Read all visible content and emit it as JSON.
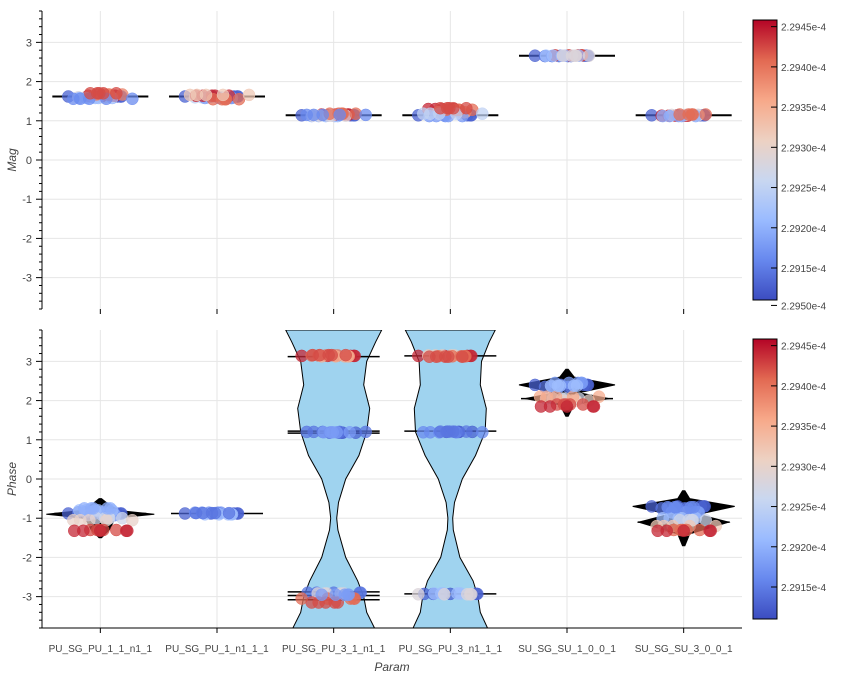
{
  "chart_data": [
    {
      "type": "scatter",
      "ylabel": "Mag",
      "xlabel": "",
      "ylim": [
        -3.8,
        3.8
      ],
      "yticks": [
        -3,
        -2,
        -1,
        0,
        1,
        2,
        3
      ],
      "grid": true,
      "categories": [
        "PU_SG_PU_1_1_n1_1",
        "PU_SG_PU_1_n1_1_1",
        "PU_SG_PU_3_1_n1_1",
        "PU_SG_PU_3_n1_1_1",
        "SU_SG_SU_1_0_0_1",
        "SU_SG_SU_3_0_0_1"
      ],
      "median_lines": [
        1.62,
        1.62,
        1.14,
        1.14,
        2.66,
        1.14
      ],
      "point_groups": [
        {
          "category": 0,
          "values": [
            1.62,
            1.6,
            1.64,
            1.58,
            1.67,
            1.56,
            1.7
          ],
          "color_levels": [
            0.05,
            0.5,
            0.95,
            0.3,
            0.8,
            0.15,
            0.9
          ]
        },
        {
          "category": 1,
          "values": [
            1.62,
            1.6,
            1.58,
            1.64,
            1.55,
            1.66
          ],
          "color_levels": [
            0.05,
            0.4,
            0.2,
            0.95,
            0.85,
            0.6
          ]
        },
        {
          "category": 2,
          "values": [
            1.14,
            1.12,
            1.16,
            1.13,
            1.18,
            1.15
          ],
          "color_levels": [
            0.05,
            0.3,
            0.95,
            0.5,
            0.85,
            0.15
          ]
        },
        {
          "category": 3,
          "values": [
            1.14,
            1.3,
            1.22,
            1.12,
            1.28,
            1.18,
            1.32
          ],
          "color_levels": [
            0.05,
            0.95,
            0.7,
            0.2,
            0.85,
            0.4,
            0.9
          ]
        },
        {
          "category": 4,
          "values": [
            2.66,
            2.65,
            2.67,
            2.66,
            2.66
          ],
          "color_levels": [
            0.05,
            0.1,
            0.9,
            0.3,
            0.5
          ]
        },
        {
          "category": 5,
          "values": [
            1.14,
            1.13,
            1.15,
            1.12,
            1.16
          ],
          "color_levels": [
            0.05,
            0.95,
            0.5,
            0.25,
            0.85
          ]
        }
      ]
    },
    {
      "type": "scatter",
      "ylabel": "Phase",
      "xlabel": "Param",
      "ylim": [
        -3.8,
        3.8
      ],
      "yticks": [
        -3,
        -2,
        -1,
        0,
        1,
        2,
        3
      ],
      "grid": true,
      "categories": [
        "PU_SG_PU_1_1_n1_1",
        "PU_SG_PU_1_n1_1_1",
        "PU_SG_PU_3_1_n1_1",
        "PU_SG_PU_3_n1_1_1",
        "SU_SG_SU_1_0_0_1",
        "SU_SG_SU_3_0_0_1"
      ],
      "violins": [
        {
          "category": 0,
          "color": "#000000",
          "profile": [
            [
              -1.5,
              0.02
            ],
            [
              -1.3,
              0.15
            ],
            [
              -1.0,
              0.25
            ],
            [
              -0.9,
              0.9
            ],
            [
              -0.8,
              0.3
            ],
            [
              -0.6,
              0.1
            ],
            [
              -0.5,
              0.02
            ]
          ]
        },
        {
          "category": 1,
          "color": "#000000",
          "profile": [
            [
              -0.95,
              0.02
            ],
            [
              -0.9,
              0.1
            ],
            [
              -0.85,
              0.35
            ],
            [
              -0.8,
              0.1
            ],
            [
              -0.75,
              0.02
            ]
          ]
        },
        {
          "category": 2,
          "color": "#9fd3ef",
          "profile": [
            [
              -3.8,
              0.68
            ],
            [
              -3.4,
              0.55
            ],
            [
              -3.0,
              0.5
            ],
            [
              -2.6,
              0.4
            ],
            [
              -2.0,
              0.2
            ],
            [
              -1.3,
              0.07
            ],
            [
              -1.0,
              0.05
            ],
            [
              -0.6,
              0.08
            ],
            [
              0.0,
              0.2
            ],
            [
              0.6,
              0.42
            ],
            [
              1.2,
              0.55
            ],
            [
              1.8,
              0.6
            ],
            [
              2.4,
              0.5
            ],
            [
              3.0,
              0.55
            ],
            [
              3.5,
              0.7
            ],
            [
              3.8,
              0.8
            ]
          ]
        },
        {
          "category": 3,
          "color": "#9fd3ef",
          "profile": [
            [
              -3.8,
              0.62
            ],
            [
              -3.4,
              0.5
            ],
            [
              -3.0,
              0.46
            ],
            [
              -2.6,
              0.38
            ],
            [
              -2.0,
              0.16
            ],
            [
              -1.3,
              0.05
            ],
            [
              -1.0,
              0.04
            ],
            [
              -0.6,
              0.07
            ],
            [
              0.0,
              0.2
            ],
            [
              0.6,
              0.42
            ],
            [
              1.2,
              0.58
            ],
            [
              1.8,
              0.6
            ],
            [
              2.4,
              0.5
            ],
            [
              3.0,
              0.52
            ],
            [
              3.5,
              0.65
            ],
            [
              3.8,
              0.75
            ]
          ]
        },
        {
          "category": 4,
          "color": "#000000",
          "profile": [
            [
              1.6,
              0.02
            ],
            [
              1.9,
              0.12
            ],
            [
              2.05,
              0.7
            ],
            [
              2.2,
              0.2
            ],
            [
              2.4,
              0.8
            ],
            [
              2.6,
              0.12
            ],
            [
              2.8,
              0.02
            ]
          ]
        },
        {
          "category": 5,
          "color": "#000000",
          "profile": [
            [
              -1.7,
              0.02
            ],
            [
              -1.4,
              0.1
            ],
            [
              -1.1,
              0.75
            ],
            [
              -0.9,
              0.25
            ],
            [
              -0.7,
              0.85
            ],
            [
              -0.5,
              0.1
            ],
            [
              -0.3,
              0.02
            ]
          ]
        }
      ],
      "median_lines": [
        {
          "category": 0,
          "values": [
            -0.88
          ]
        },
        {
          "category": 1,
          "values": [
            -0.88
          ]
        },
        {
          "category": 2,
          "values": [
            3.12,
            1.17,
            1.22,
            -2.88,
            -2.97,
            -3.08
          ]
        },
        {
          "category": 3,
          "values": [
            3.14,
            1.22,
            -2.93
          ]
        },
        {
          "category": 4,
          "values": [
            2.4,
            2.05
          ]
        },
        {
          "category": 5,
          "values": [
            -0.7,
            -1.1
          ]
        }
      ],
      "point_groups": [
        {
          "category": 0,
          "values": [
            -0.88,
            -0.85,
            -0.92,
            -0.8,
            -1.0,
            -1.05,
            -1.3,
            -1.32,
            -0.75
          ],
          "color_levels": [
            0.05,
            0.1,
            0.2,
            0.3,
            0.45,
            0.55,
            0.9,
            0.95,
            0.25
          ]
        },
        {
          "category": 1,
          "values": [
            -0.88,
            -0.86,
            -0.9,
            -0.87
          ],
          "color_levels": [
            0.05,
            0.15,
            0.3,
            0.1
          ]
        },
        {
          "category": 2,
          "values": [
            3.14,
            3.15,
            3.13,
            3.16,
            1.18,
            1.2,
            1.19,
            -2.9,
            -2.92,
            -3.05,
            -3.15,
            -2.95
          ],
          "color_levels": [
            0.95,
            0.85,
            0.7,
            0.9,
            0.05,
            0.1,
            0.2,
            0.1,
            0.5,
            0.85,
            0.9,
            0.2
          ]
        },
        {
          "category": 3,
          "values": [
            3.14,
            3.15,
            3.13,
            3.12,
            1.2,
            1.19,
            1.21,
            -2.93,
            -2.92,
            -2.94
          ],
          "color_levels": [
            0.95,
            0.6,
            0.85,
            0.9,
            0.05,
            0.15,
            0.1,
            0.05,
            0.3,
            0.5
          ]
        },
        {
          "category": 4,
          "values": [
            2.4,
            2.35,
            2.45,
            2.05,
            2.0,
            2.1,
            1.9,
            1.85,
            2.38
          ],
          "color_levels": [
            0.05,
            0.1,
            0.2,
            0.45,
            0.55,
            0.7,
            0.9,
            0.95,
            0.3
          ]
        },
        {
          "category": 5,
          "values": [
            -0.7,
            -0.75,
            -0.85,
            -1.0,
            -1.05,
            -1.2,
            -1.3,
            -1.32,
            -0.72
          ],
          "color_levels": [
            0.05,
            0.1,
            0.2,
            0.3,
            0.45,
            0.6,
            0.85,
            0.95,
            0.15
          ]
        }
      ]
    }
  ],
  "colorbar": {
    "ticks": [
      "2.2915e-4",
      "2.2920e-4",
      "2.2925e-4",
      "2.2930e-4",
      "2.2935e-4",
      "2.2940e-4",
      "2.2945e-4",
      "2.2950e-4"
    ],
    "gradient": [
      "#3b4cc0",
      "#6788ee",
      "#9abbff",
      "#c9d7f0",
      "#edd1c2",
      "#f7a889",
      "#e26952",
      "#b40426"
    ]
  }
}
